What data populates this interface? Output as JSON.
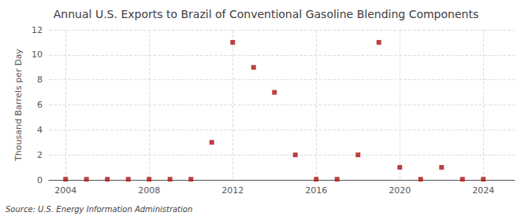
{
  "chart_data": {
    "type": "scatter",
    "title": "Annual U.S. Exports to Brazil of Conventional Gasoline Blending Components",
    "ylabel": "Thousand Barrels per Day",
    "annotation": "Source: U.S. Energy Information Administration",
    "x": [
      2004,
      2005,
      2006,
      2007,
      2008,
      2009,
      2010,
      2011,
      2012,
      2013,
      2014,
      2015,
      2016,
      2017,
      2018,
      2019,
      2020,
      2021,
      2022,
      2023,
      2024
    ],
    "values": [
      0.05,
      0.05,
      0.05,
      0.05,
      0.05,
      0.05,
      0.05,
      3.0,
      11.0,
      9.0,
      7.0,
      2.0,
      0.05,
      0.05,
      2.0,
      11.0,
      1.0,
      0.05,
      1.0,
      0.05,
      0.05
    ],
    "color": "#aa1111",
    "marker": "square",
    "xlim": [
      2003.2,
      2025.5
    ],
    "xticks": [
      2004,
      2008,
      2012,
      2016,
      2020,
      2024
    ],
    "ylim": [
      0,
      12
    ],
    "yticks": [
      0,
      2,
      4,
      6,
      8,
      10,
      12
    ],
    "grid": true
  }
}
